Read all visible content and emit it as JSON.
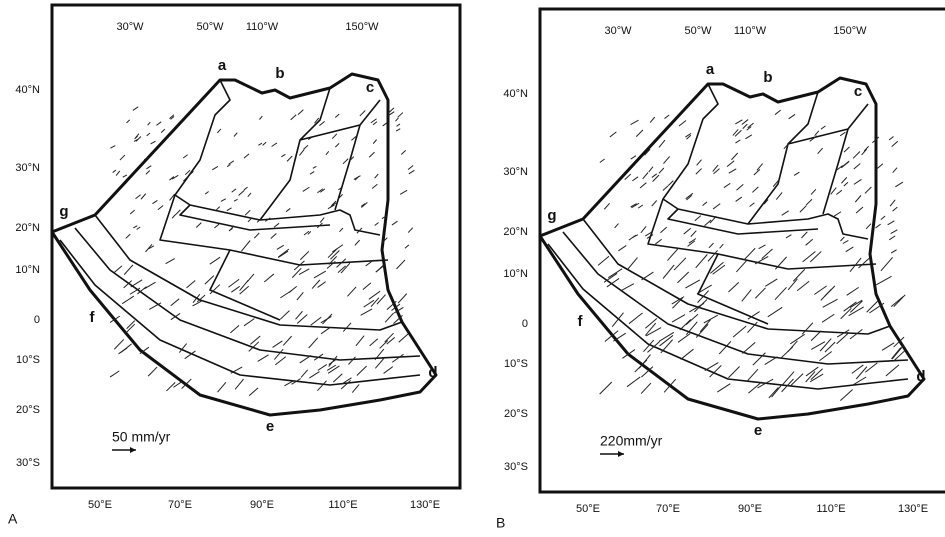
{
  "panels": [
    {
      "label": "A",
      "top_labels": [
        "30°W",
        "50°W",
        "110°W",
        "150°W"
      ],
      "left_labels": [
        "40°N",
        "30°N",
        "20°N",
        "10°N",
        "0",
        "10°S",
        "20°S",
        "30°S"
      ],
      "bottom_labels": [
        "50°E",
        "70°E",
        "90°E",
        "110°E",
        "130°E"
      ],
      "points": [
        "a",
        "b",
        "c",
        "d",
        "e",
        "f",
        "g"
      ],
      "scale": "50 mm/yr"
    },
    {
      "label": "B",
      "top_labels": [
        "30°W",
        "50°W",
        "110°W",
        "150°W"
      ],
      "left_labels": [
        "40°N",
        "30°N",
        "20°N",
        "10°N",
        "0",
        "10°S",
        "20°S",
        "30°S"
      ],
      "bottom_labels": [
        "50°E",
        "70°E",
        "90°E",
        "110°E",
        "130°E"
      ],
      "points": [
        "a",
        "b",
        "c",
        "d",
        "e",
        "f",
        "g"
      ],
      "scale": "220mm/yr"
    }
  ]
}
